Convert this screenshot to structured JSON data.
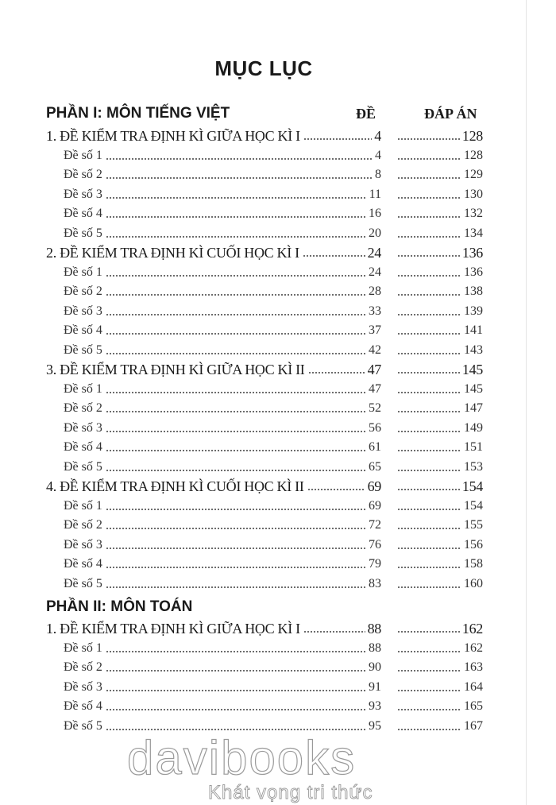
{
  "title": "MỤC LỤC",
  "column_headers": {
    "de": "ĐỀ",
    "dap_an": "ĐÁP ÁN"
  },
  "parts": [
    {
      "title": "PHẦN I: MÔN TIẾNG VIỆT",
      "groups": [
        {
          "label": "1. ĐỀ KIỂM TRA ĐỊNH KÌ GIỮA HỌC KÌ I",
          "de": "4",
          "dap_an": "128",
          "items": [
            {
              "label": "Đề số 1",
              "de": "4",
              "dap_an": "128"
            },
            {
              "label": "Đề số 2",
              "de": "8",
              "dap_an": "129"
            },
            {
              "label": "Đề số 3",
              "de": "11",
              "dap_an": "130"
            },
            {
              "label": "Đề số 4",
              "de": "16",
              "dap_an": "132"
            },
            {
              "label": "Đề số 5",
              "de": "20",
              "dap_an": "134"
            }
          ]
        },
        {
          "label": "2. ĐỀ KIỂM TRA ĐỊNH KÌ CUỐI HỌC KÌ I",
          "de": "24",
          "dap_an": "136",
          "items": [
            {
              "label": "Đề số 1",
              "de": "24",
              "dap_an": "136"
            },
            {
              "label": "Đề số 2",
              "de": "28",
              "dap_an": "138"
            },
            {
              "label": "Đề số 3",
              "de": "33",
              "dap_an": "139"
            },
            {
              "label": "Đề số 4",
              "de": "37",
              "dap_an": "141"
            },
            {
              "label": "Đề số 5",
              "de": "42",
              "dap_an": "143"
            }
          ]
        },
        {
          "label": "3. ĐỀ KIỂM TRA ĐỊNH KÌ GIỮA HỌC KÌ II",
          "de": "47",
          "dap_an": "145",
          "items": [
            {
              "label": "Đề số 1",
              "de": "47",
              "dap_an": "145"
            },
            {
              "label": "Đề số 2",
              "de": "52",
              "dap_an": "147"
            },
            {
              "label": "Đề số 3",
              "de": "56",
              "dap_an": "149"
            },
            {
              "label": "Đề số 4",
              "de": "61",
              "dap_an": "151"
            },
            {
              "label": "Đề số 5",
              "de": "65",
              "dap_an": "153"
            }
          ]
        },
        {
          "label": "4. ĐỀ KIỂM TRA ĐỊNH KÌ CUỐI HỌC KÌ II",
          "de": "69",
          "dap_an": "154",
          "items": [
            {
              "label": "Đề số 1",
              "de": "69",
              "dap_an": "154"
            },
            {
              "label": "Đề số 2",
              "de": "72",
              "dap_an": "155"
            },
            {
              "label": "Đề số 3",
              "de": "76",
              "dap_an": "156"
            },
            {
              "label": "Đề số 4",
              "de": "79",
              "dap_an": "158"
            },
            {
              "label": "Đề số 5",
              "de": "83",
              "dap_an": "160"
            }
          ]
        }
      ]
    },
    {
      "title": "PHẦN II: MÔN TOÁN",
      "groups": [
        {
          "label": "1. ĐỀ KIỂM TRA ĐỊNH KÌ GIỮA HỌC KÌ I",
          "de": "88",
          "dap_an": "162",
          "items": [
            {
              "label": "Đề số 1",
              "de": "88",
              "dap_an": "162"
            },
            {
              "label": "Đề số 2",
              "de": "90",
              "dap_an": "163"
            },
            {
              "label": "Đề số 3",
              "de": "91",
              "dap_an": "164"
            },
            {
              "label": "Đề số 4",
              "de": "93",
              "dap_an": "165"
            },
            {
              "label": "Đề số 5",
              "de": "95",
              "dap_an": "167"
            }
          ]
        }
      ]
    }
  ],
  "watermark": {
    "brand": "davibooks",
    "slogan": "Khát vọng tri thức"
  }
}
